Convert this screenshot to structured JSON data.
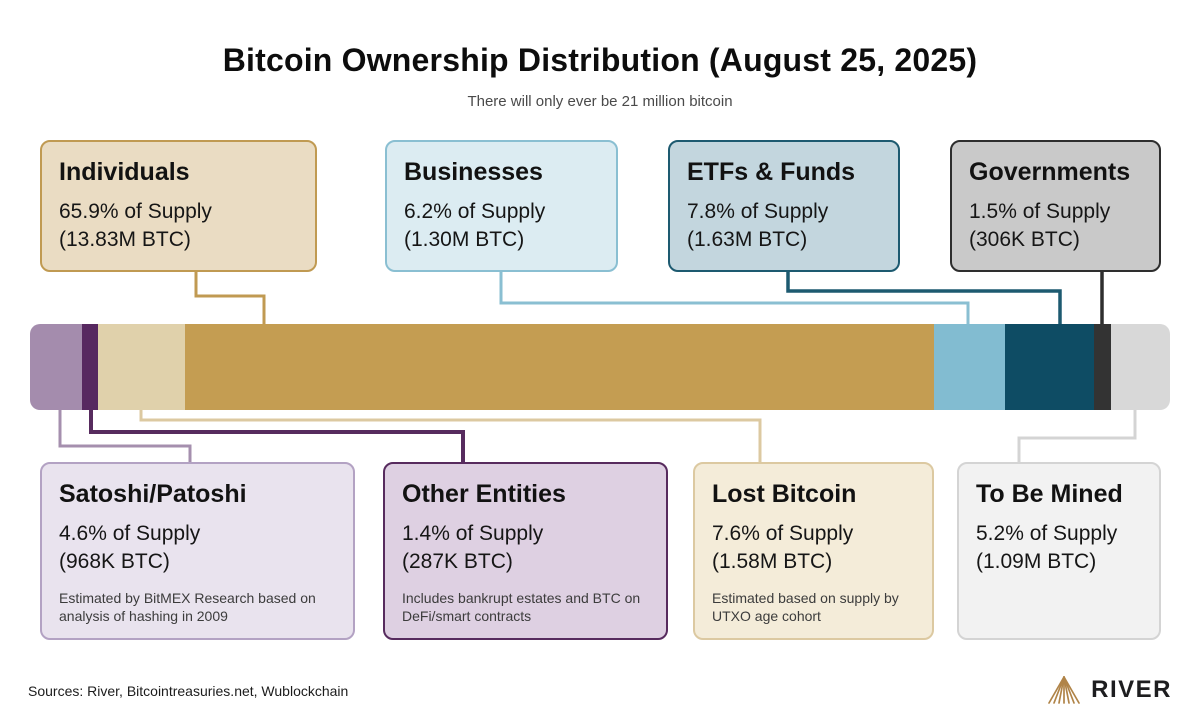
{
  "title": "Bitcoin Ownership Distribution (August 25, 2025)",
  "subtitle": "There will only ever be 21 million bitcoin",
  "chart_data": {
    "type": "bar",
    "variant": "single-stacked-horizontal",
    "title": "Bitcoin Ownership Distribution (August 25, 2025)",
    "subtitle": "There will only ever be 21 million bitcoin",
    "total": "21 million bitcoin",
    "unit": "% of Supply",
    "segments": [
      {
        "label": "Satoshi/Patoshi",
        "percent": 4.6,
        "btc": "968K BTC",
        "color": "#a48cad"
      },
      {
        "label": "Other Entities",
        "percent": 1.4,
        "btc": "287K BTC",
        "color": "#572860"
      },
      {
        "label": "Lost Bitcoin",
        "percent": 7.6,
        "btc": "1.58M BTC",
        "color": "#e0d1ab"
      },
      {
        "label": "Individuals",
        "percent": 65.9,
        "btc": "13.83M BTC",
        "color": "#c49d52"
      },
      {
        "label": "Businesses",
        "percent": 6.2,
        "btc": "1.30M BTC",
        "color": "#82bcd1"
      },
      {
        "label": "ETFs & Funds",
        "percent": 7.8,
        "btc": "1.63M BTC",
        "color": "#0e4c64"
      },
      {
        "label": "Governments",
        "percent": 1.5,
        "btc": "306K BTC",
        "color": "#333333"
      },
      {
        "label": "To Be Mined",
        "percent": 5.2,
        "btc": "1.09M BTC",
        "color": "#d8d8d8"
      }
    ]
  },
  "cards": {
    "top": [
      {
        "title": "Individuals",
        "line1": "65.9% of Supply",
        "line2": "(13.83M BTC)",
        "bg": "#eadcc3",
        "border": "#c09a52"
      },
      {
        "title": "Businesses",
        "line1": "6.2% of Supply",
        "line2": "(1.30M BTC)",
        "bg": "#dcecf2",
        "border": "#8abfd2"
      },
      {
        "title": "ETFs & Funds",
        "line1": "7.8% of Supply",
        "line2": "(1.63M BTC)",
        "bg": "#c3d6de",
        "border": "#1d5a70"
      },
      {
        "title": "Governments",
        "line1": "1.5% of Supply",
        "line2": "(306K BTC)",
        "bg": "#c9c9c9",
        "border": "#2e2e2e"
      }
    ],
    "bottom": [
      {
        "title": "Satoshi/Patoshi",
        "line1": "4.6% of Supply",
        "line2": "(968K BTC)",
        "note": "Estimated by BitMEX Research based on analysis of hashing in 2009",
        "bg": "#e9e3ee",
        "border": "#b3a2c3",
        "connector": "#a58fae"
      },
      {
        "title": "Other Entities",
        "line1": "1.4% of Supply",
        "line2": "(287K BTC)",
        "note": "Includes bankrupt estates and BTC on DeFi/smart contracts",
        "bg": "#ded0e2",
        "border": "#572b5e",
        "connector": "#572b5e"
      },
      {
        "title": "Lost Bitcoin",
        "line1": "7.6% of Supply",
        "line2": "(1.58M BTC)",
        "note": "Estimated based on supply by UTXO age cohort",
        "bg": "#f4ecd9",
        "border": "#dcc9a1",
        "connector": "#dcc9a1"
      },
      {
        "title": "To Be Mined",
        "line1": "5.2% of Supply",
        "line2": "(1.09M BTC)",
        "note": "",
        "bg": "#f2f2f2",
        "border": "#d4d4d4",
        "connector": "#d4d4d4"
      }
    ]
  },
  "footer": {
    "sources": "Sources: River, Bitcointreasuries.net, Wublockchain",
    "brand": "RIVER",
    "brand_icon": "river-logo-icon",
    "brand_gold": "#b08448"
  }
}
